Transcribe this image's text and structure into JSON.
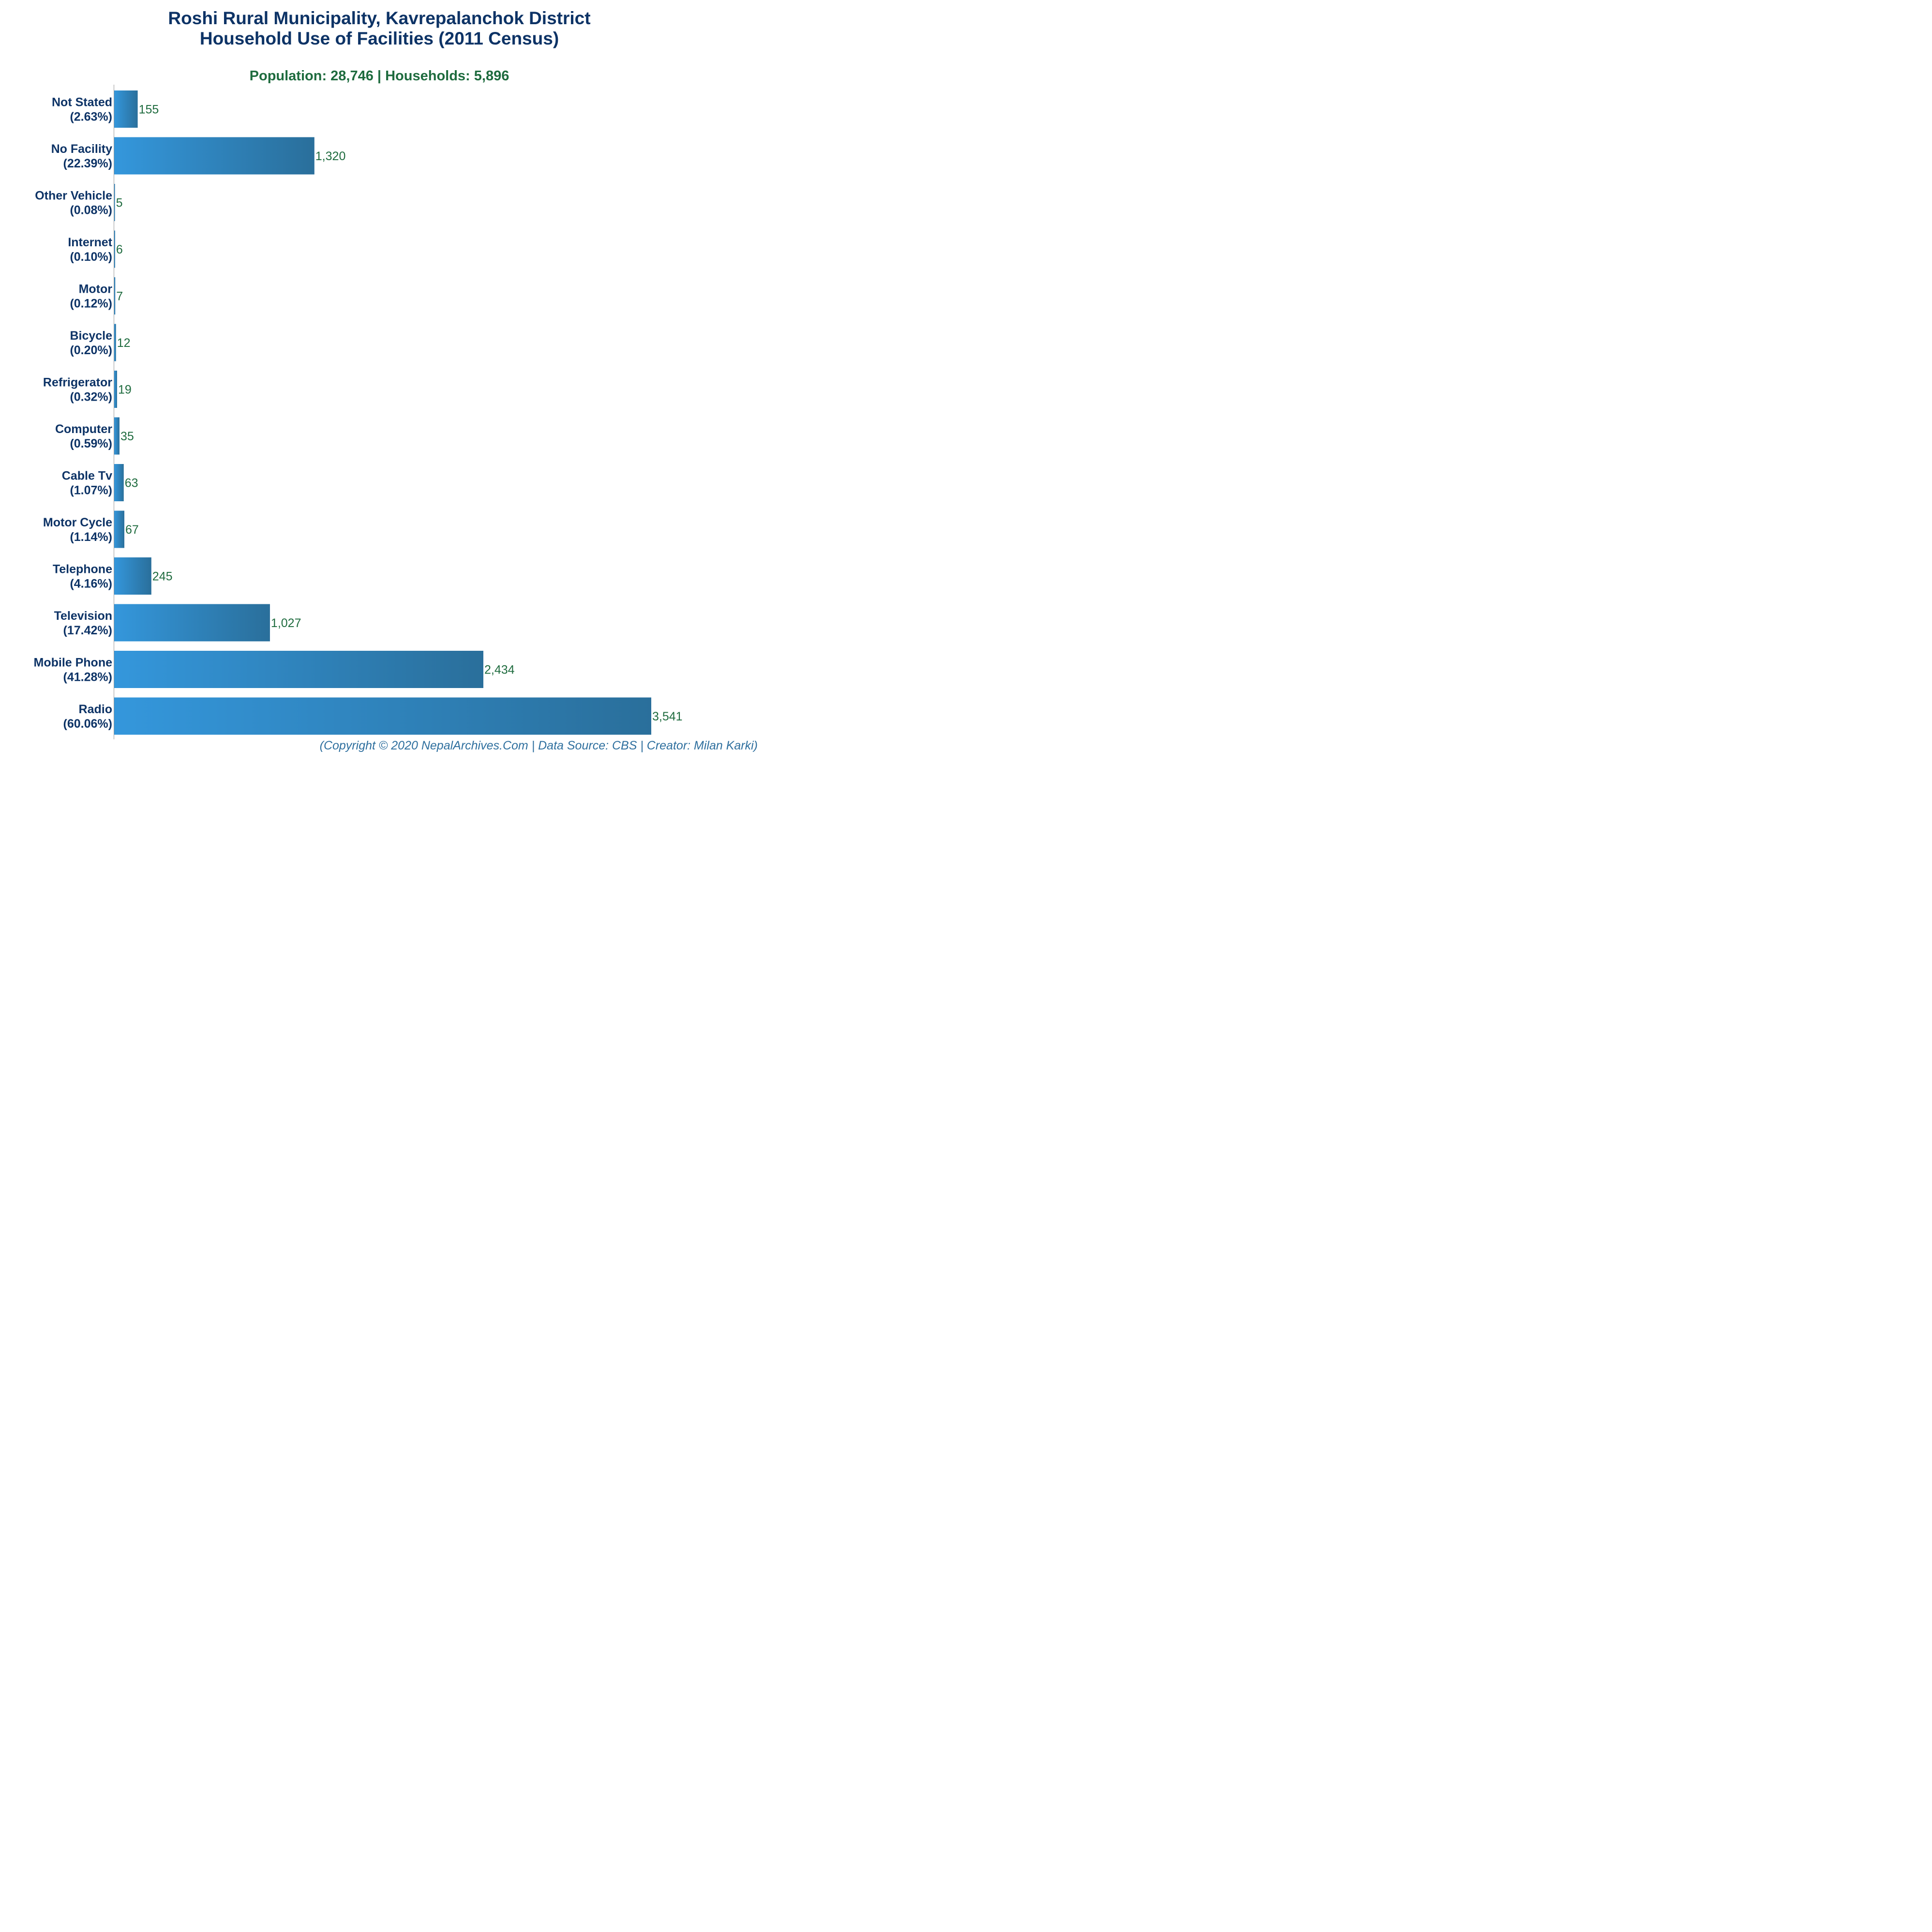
{
  "chart_data": {
    "type": "bar",
    "orientation": "horizontal",
    "title": "Roshi Rural Municipality, Kavrepalanchok District",
    "title_line2": "Household Use of Facilities (2011 Census)",
    "subtitle": "Population: 28,746 | Households: 5,896",
    "categories": [
      "Not Stated",
      "No Facility",
      "Other Vehicle",
      "Internet",
      "Motor",
      "Bicycle",
      "Refrigerator",
      "Computer",
      "Cable Tv",
      "Motor Cycle",
      "Telephone",
      "Television",
      "Mobile Phone",
      "Radio"
    ],
    "percent_labels": [
      "(2.63%)",
      "(22.39%)",
      "(0.08%)",
      "(0.10%)",
      "(0.12%)",
      "(0.20%)",
      "(0.32%)",
      "(0.59%)",
      "(1.07%)",
      "(1.14%)",
      "(4.16%)",
      "(17.42%)",
      "(41.28%)",
      "(60.06%)"
    ],
    "values": [
      155,
      1320,
      5,
      6,
      7,
      12,
      19,
      35,
      63,
      67,
      245,
      1027,
      2434,
      3541
    ],
    "value_labels": [
      "155",
      "1,320",
      "5",
      "6",
      "7",
      "12",
      "19",
      "35",
      "63",
      "67",
      "245",
      "1,027",
      "2,434",
      "3,541"
    ],
    "xlim": [
      0,
      3541
    ],
    "grid": false,
    "legend": "none",
    "footer": "(Copyright © 2020 NepalArchives.Com | Data Source: CBS | Creator: Milan Karki)",
    "colors": {
      "bar_light": "#3497dc",
      "bar_dark": "#2a6f9b",
      "title": "#0d3366",
      "subtitle": "#1e6b3e",
      "value_label": "#1e6b3e",
      "category_label": "#0d3366",
      "footer": "#2e6f9e",
      "axis": "#999999"
    }
  }
}
